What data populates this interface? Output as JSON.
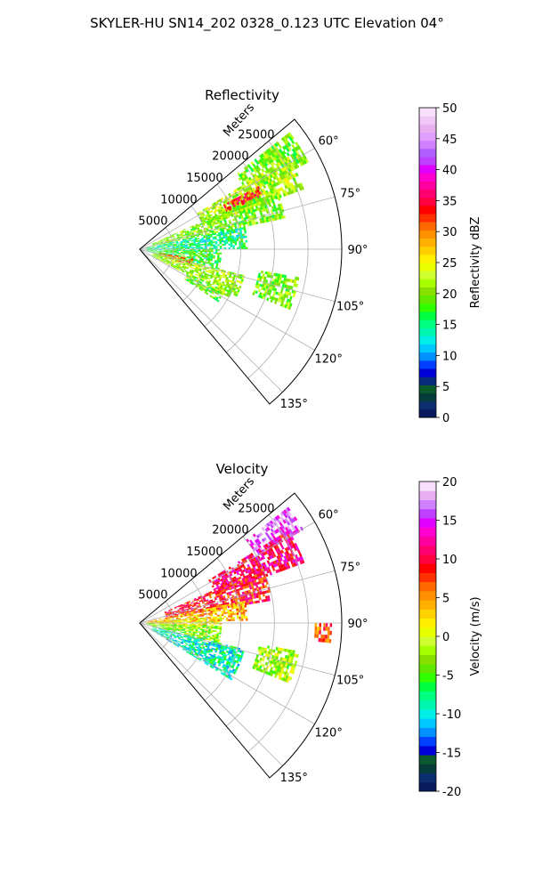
{
  "title": "SKYLER-HU  SN14_202  0328_0.123 UTC Elevation 04°",
  "chart_data": [
    {
      "type": "heatmap",
      "subtype": "radar-ppi-sector",
      "title": "Reflectivity",
      "radial_label": "Meters",
      "radial_ticks": [
        5000,
        10000,
        15000,
        20000,
        25000
      ],
      "radial_tick_labels": [
        "5000",
        "10000",
        "15000",
        "20000",
        "25000"
      ],
      "radial_max": 30000,
      "azimuth_range": [
        50,
        140
      ],
      "azimuth_ticks": [
        60,
        75,
        90,
        105,
        120,
        135
      ],
      "azimuth_tick_labels": [
        "60°",
        "75°",
        "90°",
        "105°",
        "120°",
        "135°"
      ],
      "grid": true,
      "colorbar": {
        "label": "Reflectivity dBZ",
        "min": 0,
        "max": 50,
        "ticks": [
          0,
          5,
          10,
          15,
          20,
          25,
          30,
          35,
          40,
          45,
          50
        ],
        "tick_labels": [
          "0",
          "5",
          "10",
          "15",
          "20",
          "25",
          "30",
          "35",
          "40",
          "45",
          "50"
        ],
        "colors": [
          "#0a1a5c",
          "#0b2e6e",
          "#063b3b",
          "#0b5a2e",
          "#0a2a7a",
          "#0000d8",
          "#0040ff",
          "#0090ff",
          "#00c8ff",
          "#00f0e8",
          "#00f5b0",
          "#00ff80",
          "#00ff40",
          "#30ff00",
          "#60e800",
          "#88e000",
          "#a8ff00",
          "#d0ff30",
          "#e8ff00",
          "#ffef00",
          "#ffd000",
          "#ffb000",
          "#ff9000",
          "#ff6a00",
          "#ff3000",
          "#ff0000",
          "#ff0040",
          "#ff0070",
          "#ff00a0",
          "#ff00d0",
          "#e000ff",
          "#c040ff",
          "#b060ff",
          "#d080ff",
          "#e0a0ff",
          "#e8b0f0",
          "#f0c8f8",
          "#f8e0fc"
        ]
      },
      "data_summary": [
        {
          "az_start": 52,
          "az_end": 62,
          "r_start": 18000,
          "r_end": 28000,
          "value": 20
        },
        {
          "az_start": 58,
          "az_end": 70,
          "r_start": 10000,
          "r_end": 26000,
          "value": 22
        },
        {
          "az_start": 62,
          "az_end": 66,
          "r_start": 14000,
          "r_end": 20000,
          "value": 33
        },
        {
          "az_start": 66,
          "az_end": 78,
          "r_start": 2000,
          "r_end": 22000,
          "value": 20
        },
        {
          "az_start": 78,
          "az_end": 90,
          "r_start": 1000,
          "r_end": 16000,
          "value": 15
        },
        {
          "az_start": 90,
          "az_end": 104,
          "r_start": 1000,
          "r_end": 12000,
          "value": 17
        },
        {
          "az_start": 100,
          "az_end": 108,
          "r_start": 3000,
          "r_end": 8000,
          "value": 30
        },
        {
          "az_start": 104,
          "az_end": 118,
          "r_start": 2000,
          "r_end": 16000,
          "value": 21
        },
        {
          "az_start": 118,
          "az_end": 124,
          "r_start": 8000,
          "r_end": 14000,
          "value": 19
        },
        {
          "az_start": 100,
          "az_end": 112,
          "r_start": 18000,
          "r_end": 24000,
          "value": 20
        }
      ]
    },
    {
      "type": "heatmap",
      "subtype": "radar-ppi-sector",
      "title": "Velocity",
      "radial_label": "Meters",
      "radial_ticks": [
        5000,
        10000,
        15000,
        20000,
        25000
      ],
      "radial_tick_labels": [
        "5000",
        "10000",
        "15000",
        "20000",
        "25000"
      ],
      "radial_max": 30000,
      "azimuth_range": [
        50,
        140
      ],
      "azimuth_ticks": [
        60,
        75,
        90,
        105,
        120,
        135
      ],
      "azimuth_tick_labels": [
        "60°",
        "75°",
        "90°",
        "105°",
        "120°",
        "135°"
      ],
      "grid": true,
      "colorbar": {
        "label": "Velocity (m/s)",
        "min": -20,
        "max": 20,
        "ticks": [
          -20,
          -15,
          -10,
          -5,
          0,
          5,
          10,
          15,
          20
        ],
        "tick_labels": [
          "-20",
          "-15",
          "-10",
          "-5",
          "0",
          "5",
          "10",
          "15",
          "20"
        ],
        "colors": [
          "#0a1a5c",
          "#0b2e6e",
          "#063b3b",
          "#0b5a2e",
          "#0000d8",
          "#0040ff",
          "#0090ff",
          "#00c8ff",
          "#00f0e8",
          "#00f5b0",
          "#00ff80",
          "#00ff40",
          "#30ff00",
          "#60e800",
          "#88e000",
          "#a8ff00",
          "#d0ff30",
          "#e8ff00",
          "#ffef00",
          "#ffd000",
          "#ffb000",
          "#ff9000",
          "#ff6a00",
          "#ff3000",
          "#ff0000",
          "#ff0040",
          "#ff0070",
          "#ff00a0",
          "#ff00d0",
          "#e000ff",
          "#c040ff",
          "#d080ff",
          "#e8b0f0",
          "#f8e0fc"
        ]
      },
      "data_summary": [
        {
          "az_start": 52,
          "az_end": 60,
          "r_start": 20000,
          "r_end": 28000,
          "value": 17
        },
        {
          "az_start": 58,
          "az_end": 70,
          "r_start": 12000,
          "r_end": 26000,
          "value": 11
        },
        {
          "az_start": 66,
          "az_end": 80,
          "r_start": 4000,
          "r_end": 20000,
          "value": 9
        },
        {
          "az_start": 78,
          "az_end": 88,
          "r_start": 1000,
          "r_end": 16000,
          "value": 4
        },
        {
          "az_start": 85,
          "az_end": 94,
          "r_start": 1000,
          "r_end": 12000,
          "value": 1
        },
        {
          "az_start": 92,
          "az_end": 104,
          "r_start": 1000,
          "r_end": 12000,
          "value": -3
        },
        {
          "az_start": 104,
          "az_end": 122,
          "r_start": 2000,
          "r_end": 16000,
          "value": -9
        },
        {
          "az_start": 100,
          "az_end": 112,
          "r_start": 18000,
          "r_end": 24000,
          "value": -2
        },
        {
          "az_start": 90,
          "az_end": 96,
          "r_start": 26000,
          "r_end": 28500,
          "value": 7
        }
      ]
    }
  ]
}
